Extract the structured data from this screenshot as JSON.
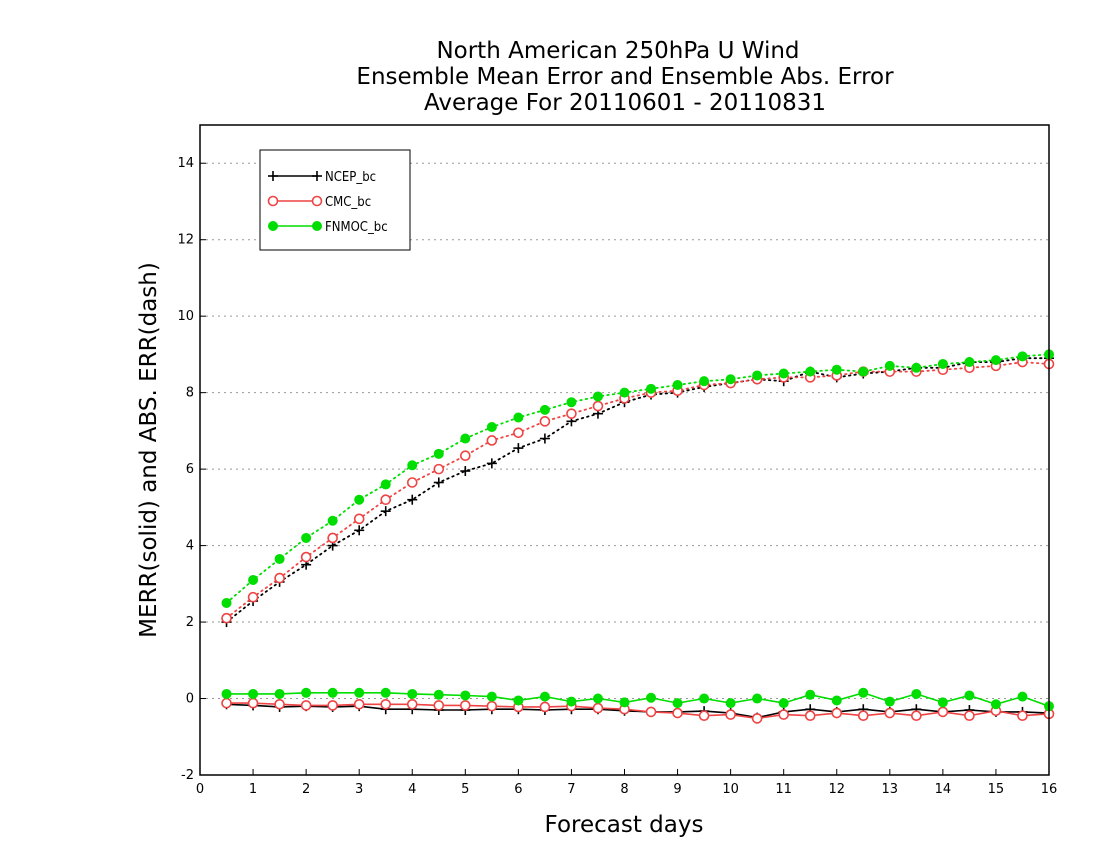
{
  "chart_data": {
    "type": "line",
    "title": [
      "North American 250hPa U Wind",
      "Ensemble Mean Error and Ensemble Abs. Error",
      "Average For 20110601 - 20110831"
    ],
    "xlabel": "Forecast days",
    "ylabel": "MERR(solid) and ABS. ERR(dash)",
    "xlim": [
      0,
      16
    ],
    "ylim": [
      -2,
      15
    ],
    "xticks": [
      0,
      1,
      2,
      3,
      4,
      5,
      6,
      7,
      8,
      9,
      10,
      11,
      12,
      13,
      14,
      15,
      16
    ],
    "yticks": [
      -2,
      0,
      2,
      4,
      6,
      8,
      10,
      12,
      14
    ],
    "grid": "horizontal-dotted",
    "legend_position": "top-left",
    "x": [
      0.5,
      1,
      1.5,
      2,
      2.5,
      3,
      3.5,
      4,
      4.5,
      5,
      5.5,
      6,
      6.5,
      7,
      7.5,
      8,
      8.5,
      9,
      9.5,
      10,
      10.5,
      11,
      11.5,
      12,
      12.5,
      13,
      13.5,
      14,
      14.5,
      15,
      15.5,
      16
    ],
    "series": [
      {
        "name": "NCEP_bc",
        "color": "#000000",
        "marker": "plus",
        "merr": [
          -0.15,
          -0.18,
          -0.22,
          -0.2,
          -0.22,
          -0.2,
          -0.28,
          -0.28,
          -0.3,
          -0.3,
          -0.28,
          -0.28,
          -0.3,
          -0.28,
          -0.28,
          -0.32,
          -0.35,
          -0.35,
          -0.33,
          -0.38,
          -0.5,
          -0.35,
          -0.28,
          -0.35,
          -0.28,
          -0.35,
          -0.28,
          -0.35,
          -0.3,
          -0.35,
          -0.35,
          -0.38
        ],
        "abserr": [
          2.0,
          2.55,
          3.05,
          3.5,
          4.0,
          4.4,
          4.9,
          5.2,
          5.65,
          5.95,
          6.15,
          6.55,
          6.8,
          7.25,
          7.45,
          7.75,
          7.95,
          8.0,
          8.15,
          8.25,
          8.35,
          8.3,
          8.55,
          8.4,
          8.5,
          8.55,
          8.65,
          8.65,
          8.8,
          8.8,
          8.9,
          8.9
        ]
      },
      {
        "name": "CMC_bc",
        "color": "#ee4444",
        "marker": "open-circle",
        "merr": [
          -0.12,
          -0.12,
          -0.15,
          -0.18,
          -0.18,
          -0.15,
          -0.15,
          -0.15,
          -0.18,
          -0.18,
          -0.2,
          -0.22,
          -0.22,
          -0.2,
          -0.25,
          -0.28,
          -0.35,
          -0.38,
          -0.45,
          -0.42,
          -0.52,
          -0.42,
          -0.45,
          -0.38,
          -0.45,
          -0.38,
          -0.45,
          -0.35,
          -0.45,
          -0.32,
          -0.45,
          -0.4
        ],
        "abserr": [
          2.1,
          2.65,
          3.15,
          3.7,
          4.2,
          4.7,
          5.2,
          5.65,
          6.0,
          6.35,
          6.75,
          6.95,
          7.25,
          7.45,
          7.65,
          7.85,
          8.0,
          8.05,
          8.2,
          8.25,
          8.35,
          8.4,
          8.4,
          8.45,
          8.55,
          8.55,
          8.55,
          8.6,
          8.65,
          8.7,
          8.8,
          8.75
        ]
      },
      {
        "name": "FNMOC_bc",
        "color": "#00dd00",
        "marker": "filled-circle",
        "merr": [
          0.12,
          0.12,
          0.12,
          0.15,
          0.15,
          0.15,
          0.15,
          0.12,
          0.1,
          0.08,
          0.05,
          -0.05,
          0.05,
          -0.08,
          0.0,
          -0.1,
          0.02,
          -0.12,
          0.0,
          -0.12,
          0.0,
          -0.12,
          0.1,
          -0.05,
          0.15,
          -0.08,
          0.12,
          -0.1,
          0.08,
          -0.15,
          0.05,
          -0.2
        ],
        "abserr": [
          2.5,
          3.1,
          3.65,
          4.2,
          4.65,
          5.2,
          5.6,
          6.1,
          6.4,
          6.8,
          7.1,
          7.35,
          7.55,
          7.75,
          7.9,
          8.0,
          8.1,
          8.2,
          8.3,
          8.35,
          8.45,
          8.5,
          8.55,
          8.6,
          8.55,
          8.7,
          8.65,
          8.75,
          8.8,
          8.85,
          8.95,
          9.0
        ]
      }
    ]
  }
}
